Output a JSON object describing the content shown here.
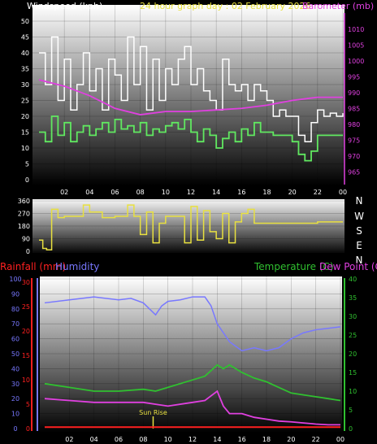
{
  "chart_data": [
    {
      "type": "line",
      "title": "24 hour graph day : 02 February 2026",
      "x_ticks": [
        "02",
        "04",
        "06",
        "08",
        "10",
        "12",
        "14",
        "16",
        "18",
        "20",
        "22",
        "00"
      ],
      "y_left": {
        "label": "Windspeed (kph)",
        "ticks": [
          "0",
          "5",
          "10",
          "15",
          "20",
          "25",
          "30",
          "35",
          "40",
          "45",
          "50"
        ],
        "range": [
          0,
          50
        ]
      },
      "y_right": {
        "label": "Barometer (mb)",
        "ticks": [
          "965",
          "970",
          "975",
          "980",
          "985",
          "990",
          "995",
          "1000",
          "1005",
          "1010"
        ],
        "range": [
          962.5,
          1012.5
        ]
      },
      "grid": true,
      "series": [
        {
          "name": "Windspeed (kph)",
          "color": "#ffffff",
          "axis": "left",
          "x": [
            0,
            0.5,
            1,
            1.5,
            2,
            2.5,
            3,
            3.5,
            4,
            4.5,
            5,
            5.5,
            6,
            6.5,
            7,
            7.5,
            8,
            8.5,
            9,
            9.5,
            10,
            10.5,
            11,
            11.5,
            12,
            12.5,
            13,
            13.5,
            14,
            14.5,
            15,
            15.5,
            16,
            16.5,
            17,
            17.5,
            18,
            18.5,
            19,
            19.5,
            20,
            20.5,
            21,
            21.5,
            22,
            22.5,
            23,
            23.5,
            24
          ],
          "values": [
            40,
            30,
            45,
            25,
            38,
            22,
            30,
            40,
            28,
            35,
            22,
            38,
            33,
            25,
            45,
            30,
            42,
            22,
            38,
            25,
            35,
            30,
            38,
            42,
            30,
            35,
            28,
            25,
            22,
            38,
            30,
            28,
            30,
            25,
            30,
            28,
            25,
            20,
            22,
            20,
            20,
            14,
            12,
            18,
            22,
            20,
            21,
            20,
            21
          ]
        },
        {
          "name": "Wind gust",
          "color": "#60e860",
          "axis": "left",
          "x": [
            0,
            0.5,
            1,
            1.5,
            2,
            2.5,
            3,
            3.5,
            4,
            4.5,
            5,
            5.5,
            6,
            6.5,
            7,
            7.5,
            8,
            8.5,
            9,
            9.5,
            10,
            10.5,
            11,
            11.5,
            12,
            12.5,
            13,
            13.5,
            14,
            14.5,
            15,
            15.5,
            16,
            16.5,
            17,
            17.5,
            18,
            18.5,
            19,
            19.5,
            20,
            20.5,
            21,
            21.5,
            22,
            22.5,
            23,
            23.5,
            24
          ],
          "values": [
            15,
            12,
            20,
            14,
            18,
            12,
            15,
            17,
            14,
            16,
            18,
            15,
            19,
            16,
            17,
            15,
            18,
            14,
            16,
            15,
            17,
            18,
            16,
            19,
            15,
            12,
            16,
            14,
            10,
            13,
            15,
            12,
            16,
            14,
            18,
            15,
            15,
            14,
            14,
            14,
            12,
            8,
            6,
            9,
            14,
            14,
            14,
            14,
            14
          ]
        },
        {
          "name": "Barometer (mb)",
          "color": "#e040e0",
          "axis": "right",
          "x": [
            0,
            2,
            4,
            6,
            8,
            10,
            12,
            14,
            16,
            18,
            20,
            22,
            24
          ],
          "values": [
            994,
            992,
            989,
            985,
            983,
            984,
            984,
            984.5,
            985,
            986,
            987.5,
            988.5,
            988.5
          ]
        }
      ]
    },
    {
      "type": "line",
      "title": "",
      "x_ticks": [],
      "y_left": {
        "label": "",
        "ticks": [
          "0",
          "90",
          "180",
          "270",
          "360"
        ],
        "range": [
          0,
          360
        ]
      },
      "y_right": {
        "label": "",
        "ticks": [
          "N",
          "W",
          "S",
          "E",
          "N"
        ]
      },
      "grid": true,
      "series": [
        {
          "name": "Wind direction",
          "color": "#e8e040",
          "axis": "left",
          "x": [
            0,
            0.3,
            0.6,
            1,
            1.5,
            2,
            3,
            3.5,
            4,
            5,
            6,
            7,
            7.5,
            8,
            8.5,
            9,
            9.5,
            10,
            11,
            11.5,
            12,
            12.5,
            13,
            13.5,
            14,
            14.5,
            15,
            15.5,
            16,
            16.5,
            17,
            18,
            20,
            22,
            24
          ],
          "values": [
            80,
            20,
            10,
            300,
            240,
            250,
            250,
            330,
            280,
            240,
            250,
            330,
            250,
            120,
            280,
            60,
            200,
            250,
            250,
            60,
            320,
            80,
            290,
            140,
            90,
            270,
            60,
            210,
            270,
            300,
            200,
            200,
            200,
            210,
            210
          ]
        }
      ]
    },
    {
      "type": "line",
      "title": "",
      "x_ticks": [
        "02",
        "04",
        "06",
        "08",
        "10",
        "12",
        "14",
        "16",
        "18",
        "20",
        "22",
        "00"
      ],
      "y_left_outer": {
        "label": "Rainfall (mm)",
        "ticks": [
          "0",
          "5",
          "10",
          "15",
          "20",
          "25",
          "30"
        ],
        "range": [
          0,
          30
        ]
      },
      "y_left_inner": {
        "label": "Humidity",
        "ticks": [
          "0",
          "10",
          "20",
          "30",
          "40",
          "50",
          "60",
          "70",
          "80",
          "90",
          "100"
        ],
        "range": [
          0,
          100
        ]
      },
      "y_right": {
        "label": "Temperature (C)",
        "ticks": [
          "0",
          "5",
          "10",
          "15",
          "20",
          "25",
          "30",
          "35",
          "40"
        ],
        "range": [
          0,
          40
        ]
      },
      "dew_label": "Dew Point (C)",
      "annotations": [
        {
          "text": "Sun Rise",
          "x": 8.8
        }
      ],
      "grid": true,
      "series": [
        {
          "name": "Humidity",
          "color": "#7878ff",
          "axis": "left_inner",
          "x": [
            0,
            2,
            4,
            6,
            7,
            8,
            8.5,
            9,
            9.5,
            10,
            11,
            12,
            13,
            13.5,
            14,
            15,
            16,
            17,
            18,
            19,
            20,
            21,
            22,
            23,
            24
          ],
          "values": [
            84,
            86,
            88,
            86,
            87,
            84,
            80,
            76,
            82,
            85,
            86,
            88,
            88,
            82,
            70,
            58,
            52,
            54,
            52,
            54,
            60,
            64,
            66,
            67,
            68
          ]
        },
        {
          "name": "Temperature (C)",
          "color": "#30c030",
          "axis": "right",
          "x": [
            0,
            2,
            4,
            6,
            8,
            9,
            10,
            12,
            13,
            14,
            14.5,
            15,
            16,
            17,
            18,
            19,
            20,
            21,
            22,
            23,
            24
          ],
          "values": [
            12,
            11,
            10,
            10,
            10.5,
            10,
            11,
            13,
            14,
            17,
            16,
            17,
            15,
            13.5,
            12.5,
            11,
            9.5,
            9,
            8.5,
            8,
            7.5
          ]
        },
        {
          "name": "Dew Point (C)",
          "color": "#e040e0",
          "axis": "right",
          "x": [
            0,
            2,
            4,
            6,
            8,
            9,
            10,
            12,
            13,
            14,
            14.5,
            15,
            16,
            17,
            18,
            19,
            20,
            21,
            22,
            23,
            24
          ],
          "values": [
            8,
            7.5,
            7,
            7,
            7,
            6.5,
            6,
            7,
            7.5,
            10,
            6,
            4,
            4,
            3,
            2.5,
            2,
            1.8,
            1.5,
            1.2,
            1,
            1
          ]
        },
        {
          "name": "Rainfall (mm)",
          "color": "#ff2020",
          "axis": "left_outer",
          "x": [
            0,
            6,
            12,
            18,
            24
          ],
          "values": [
            0.3,
            0.3,
            0.3,
            0.3,
            0.3
          ]
        }
      ]
    }
  ]
}
